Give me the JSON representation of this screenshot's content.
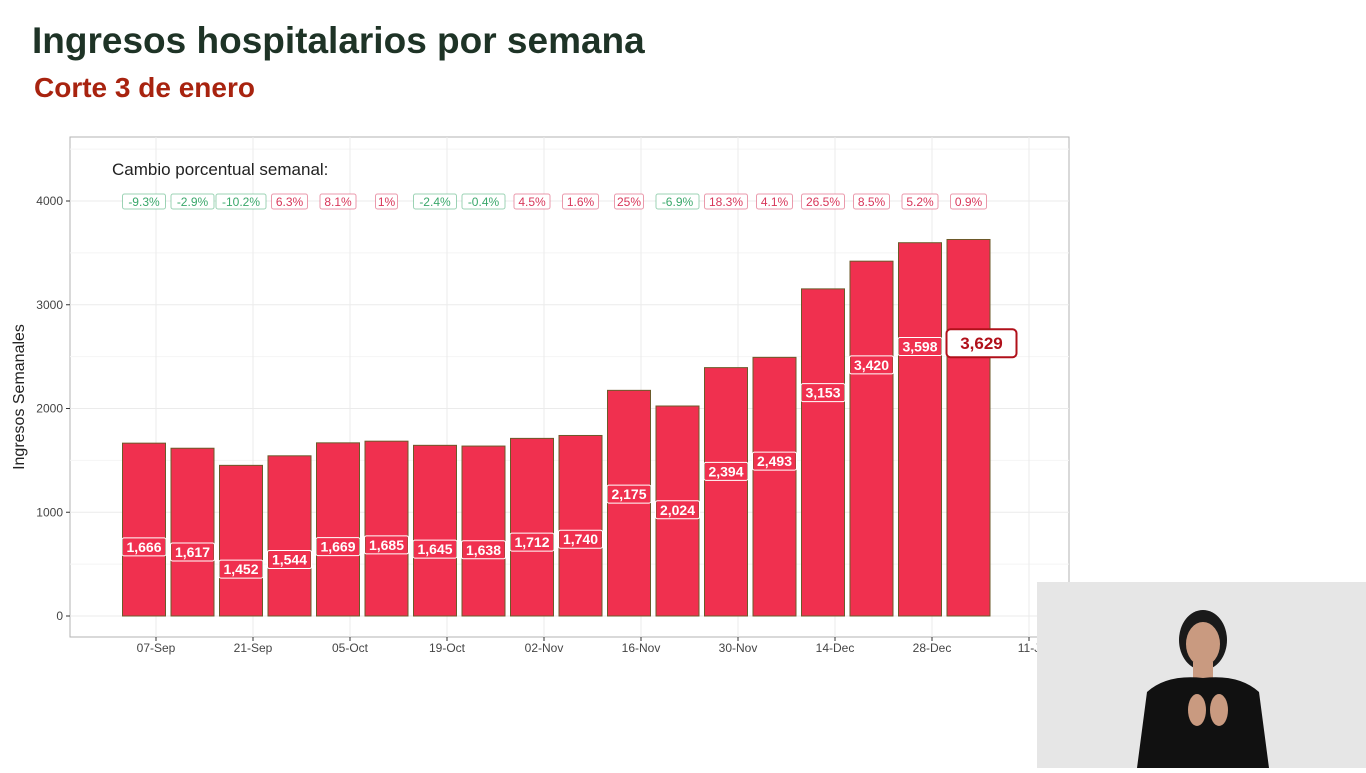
{
  "header": {
    "title": "Ingresos hospitalarios por semana",
    "subtitle": "Corte 3 de enero"
  },
  "chart_data": {
    "type": "bar",
    "title": "Ingresos hospitalarios por semana",
    "subtitle": "Corte 3 de enero",
    "ylabel": "Ingresos Semanales",
    "xlabel": "",
    "ylim": [
      0,
      4500
    ],
    "yticks": [
      0,
      1000,
      2000,
      3000,
      4000
    ],
    "xtick_labels": [
      "07-Sep",
      "21-Sep",
      "05-Oct",
      "19-Oct",
      "02-Nov",
      "16-Nov",
      "30-Nov",
      "14-Dec",
      "28-Dec",
      "11-J"
    ],
    "grid": true,
    "values": [
      1666,
      1617,
      1452,
      1544,
      1669,
      1685,
      1645,
      1638,
      1712,
      1740,
      2175,
      2024,
      2394,
      2493,
      3153,
      3420,
      3598,
      3629
    ],
    "value_labels": [
      "1,666",
      "1,617",
      "1,452",
      "1,544",
      "1,669",
      "1,685",
      "1,645",
      "1,638",
      "1,712",
      "1,740",
      "2,175",
      "2,024",
      "2,394",
      "2,493",
      "3,153",
      "3,420",
      "3,598",
      "3,629"
    ],
    "annotation_title": "Cambio porcentual semanal:",
    "pct_change": [
      "-9.3%",
      "-2.9%",
      "-10.2%",
      "6.3%",
      "8.1%",
      "1%",
      "-2.4%",
      "-0.4%",
      "4.5%",
      "1.6%",
      "25%",
      "-6.9%",
      "18.3%",
      "4.1%",
      "26.5%",
      "8.5%",
      "5.2%",
      "0.9%"
    ],
    "highlight_label": "3,629",
    "colors": {
      "bar": "#f0304f",
      "bar_outline": "#6b5a2a",
      "negative": "#3aa86b",
      "positive": "#d8365a",
      "highlight_border": "#b0101a"
    }
  }
}
